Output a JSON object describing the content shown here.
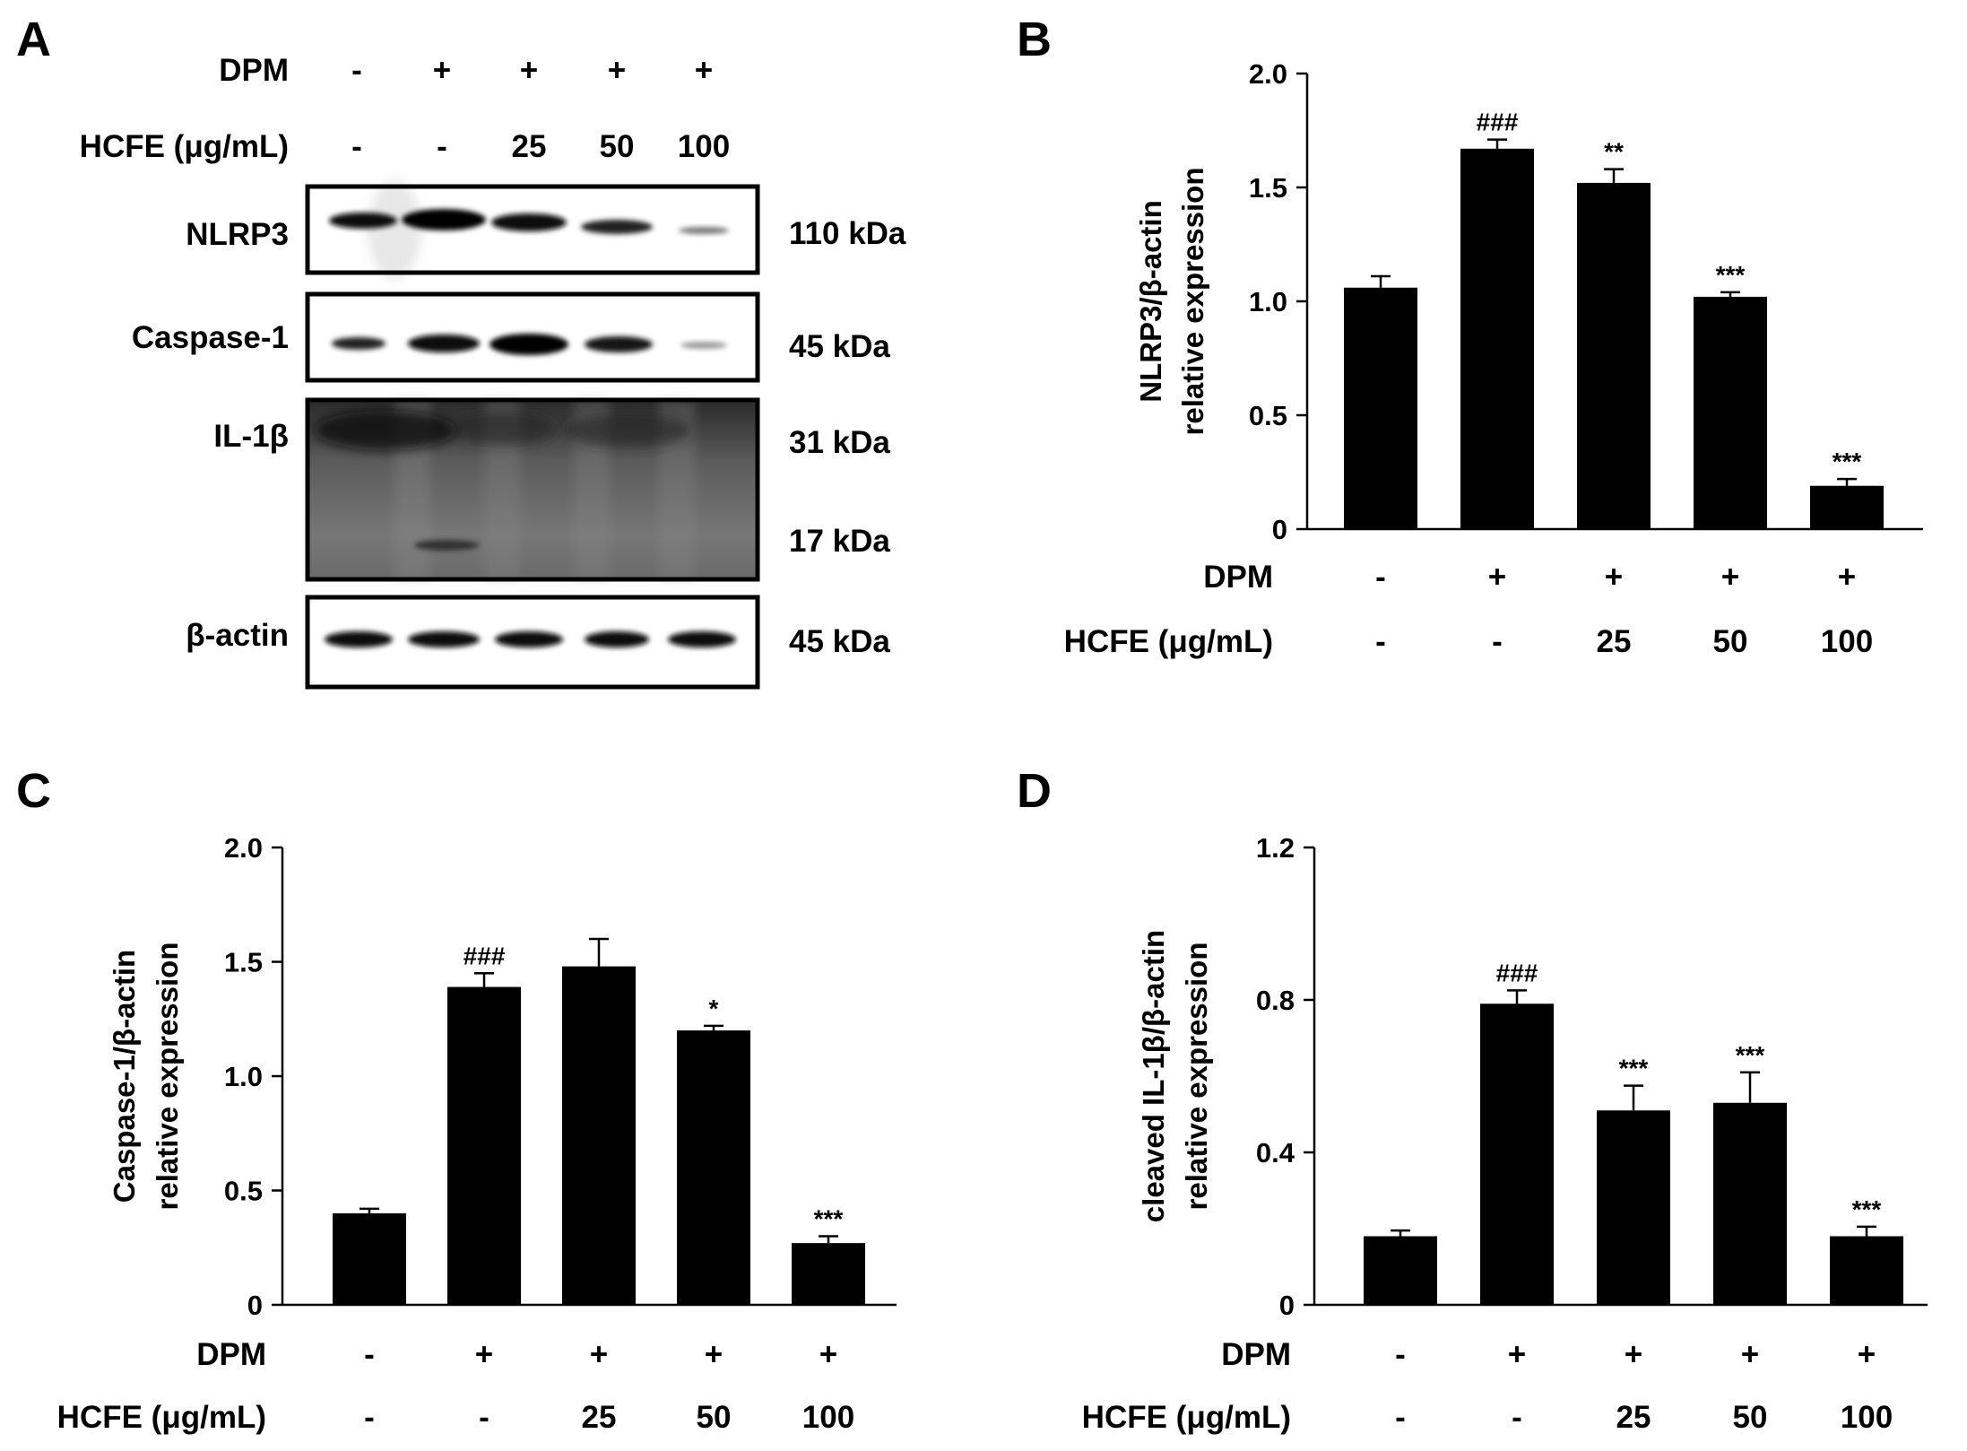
{
  "panels": {
    "A": {
      "letter": "A",
      "row_labels": {
        "dpm": "DPM",
        "hcfe": "HCFE (μg/mL)"
      },
      "dpm": [
        "-",
        "+",
        "+",
        "+",
        "+"
      ],
      "hcfe": [
        "-",
        "-",
        "25",
        "50",
        "100"
      ],
      "blots": [
        {
          "name": "NLRP3",
          "kda": [
            "110 kDa"
          ]
        },
        {
          "name": "Caspase-1",
          "kda": [
            "45 kDa"
          ]
        },
        {
          "name": "IL-1β",
          "kda": [
            "31 kDa",
            "17 kDa"
          ]
        },
        {
          "name": "β-actin",
          "kda": [
            "45 kDa"
          ]
        }
      ]
    },
    "B": {
      "letter": "B"
    },
    "C": {
      "letter": "C"
    },
    "D": {
      "letter": "D"
    }
  },
  "chart_data": [
    {
      "panel": "B",
      "type": "bar",
      "ylabel": [
        "NLRP3/β-actin",
        "relative expression"
      ],
      "ylim": [
        0,
        2.0
      ],
      "yticks": [
        "0",
        "0.5",
        "1.0",
        "1.5",
        "2.0"
      ],
      "ytick_values": [
        0,
        0.5,
        1.0,
        1.5,
        2.0
      ],
      "row_labels": {
        "dpm": "DPM",
        "hcfe": "HCFE (μg/mL)"
      },
      "dpm": [
        "-",
        "+",
        "+",
        "+",
        "+"
      ],
      "hcfe": [
        "-",
        "-",
        "25",
        "50",
        "100"
      ],
      "values": [
        1.06,
        1.67,
        1.52,
        1.02,
        0.19
      ],
      "errors": [
        0.05,
        0.04,
        0.06,
        0.02,
        0.03
      ],
      "significance": [
        "",
        "###",
        "**",
        "***",
        "***"
      ],
      "bar_color": "#000000"
    },
    {
      "panel": "C",
      "type": "bar",
      "ylabel": [
        "Caspase-1/β-actin",
        "relative expression"
      ],
      "ylim": [
        0,
        2.0
      ],
      "yticks": [
        "0",
        "0.5",
        "1.0",
        "1.5",
        "2.0"
      ],
      "ytick_values": [
        0,
        0.5,
        1.0,
        1.5,
        2.0
      ],
      "row_labels": {
        "dpm": "DPM",
        "hcfe": "HCFE (μg/mL)"
      },
      "dpm": [
        "-",
        "+",
        "+",
        "+",
        "+"
      ],
      "hcfe": [
        "-",
        "-",
        "25",
        "50",
        "100"
      ],
      "values": [
        0.4,
        1.39,
        1.48,
        1.2,
        0.27
      ],
      "errors": [
        0.02,
        0.06,
        0.12,
        0.02,
        0.03
      ],
      "significance": [
        "",
        "###",
        "",
        "*",
        "***"
      ],
      "bar_color": "#000000"
    },
    {
      "panel": "D",
      "type": "bar",
      "ylabel": [
        "cleaved IL-1β/β-actin",
        "relative expression"
      ],
      "ylim": [
        0,
        1.2
      ],
      "yticks": [
        "0",
        "0.4",
        "0.8",
        "1.2"
      ],
      "ytick_values": [
        0,
        0.4,
        0.8,
        1.2
      ],
      "row_labels": {
        "dpm": "DPM",
        "hcfe": "HCFE (μg/mL)"
      },
      "dpm": [
        "-",
        "+",
        "+",
        "+",
        "+"
      ],
      "hcfe": [
        "-",
        "-",
        "25",
        "50",
        "100"
      ],
      "values": [
        0.18,
        0.79,
        0.51,
        0.53,
        0.18
      ],
      "errors": [
        0.015,
        0.035,
        0.065,
        0.08,
        0.025
      ],
      "significance": [
        "",
        "###",
        "***",
        "***",
        "***"
      ],
      "bar_color": "#000000"
    }
  ]
}
